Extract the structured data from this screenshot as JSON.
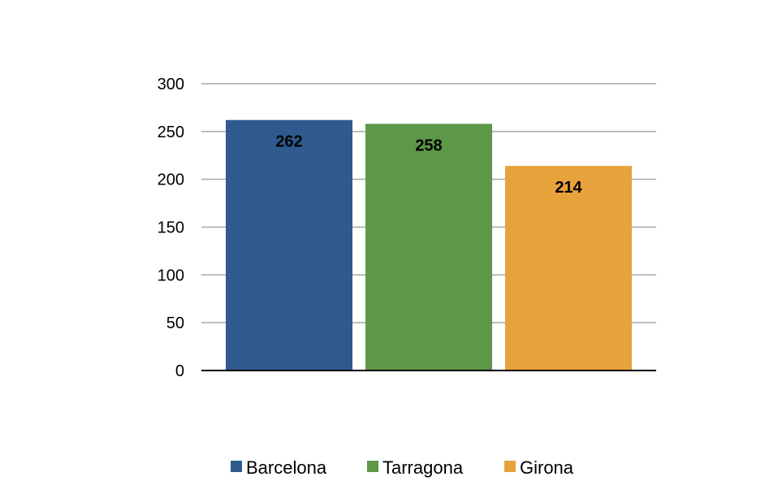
{
  "chart_data": {
    "type": "bar",
    "title": "",
    "xlabel": "",
    "ylabel": "",
    "categories": [
      "Barcelona",
      "Tarragona",
      "Girona"
    ],
    "values": [
      262,
      258,
      214
    ],
    "data_labels": [
      "262",
      "258",
      "214"
    ],
    "colors": [
      "#2e5a8e",
      "#5d9748",
      "#e8a23c"
    ],
    "ylim": [
      0,
      300
    ],
    "y_ticks": [
      {
        "value": 0,
        "label": "0"
      },
      {
        "value": 50,
        "label": "50"
      },
      {
        "value": 100,
        "label": "100"
      },
      {
        "value": 150,
        "label": "150"
      },
      {
        "value": 200,
        "label": "200"
      },
      {
        "value": 250,
        "label": "250"
      },
      {
        "value": 300,
        "label": "300"
      }
    ],
    "grid": true,
    "legend": {
      "placement": "bottom",
      "entries": [
        "Barcelona",
        "Tarragona",
        "Girona"
      ]
    },
    "x_tick_labels_visible": false
  }
}
